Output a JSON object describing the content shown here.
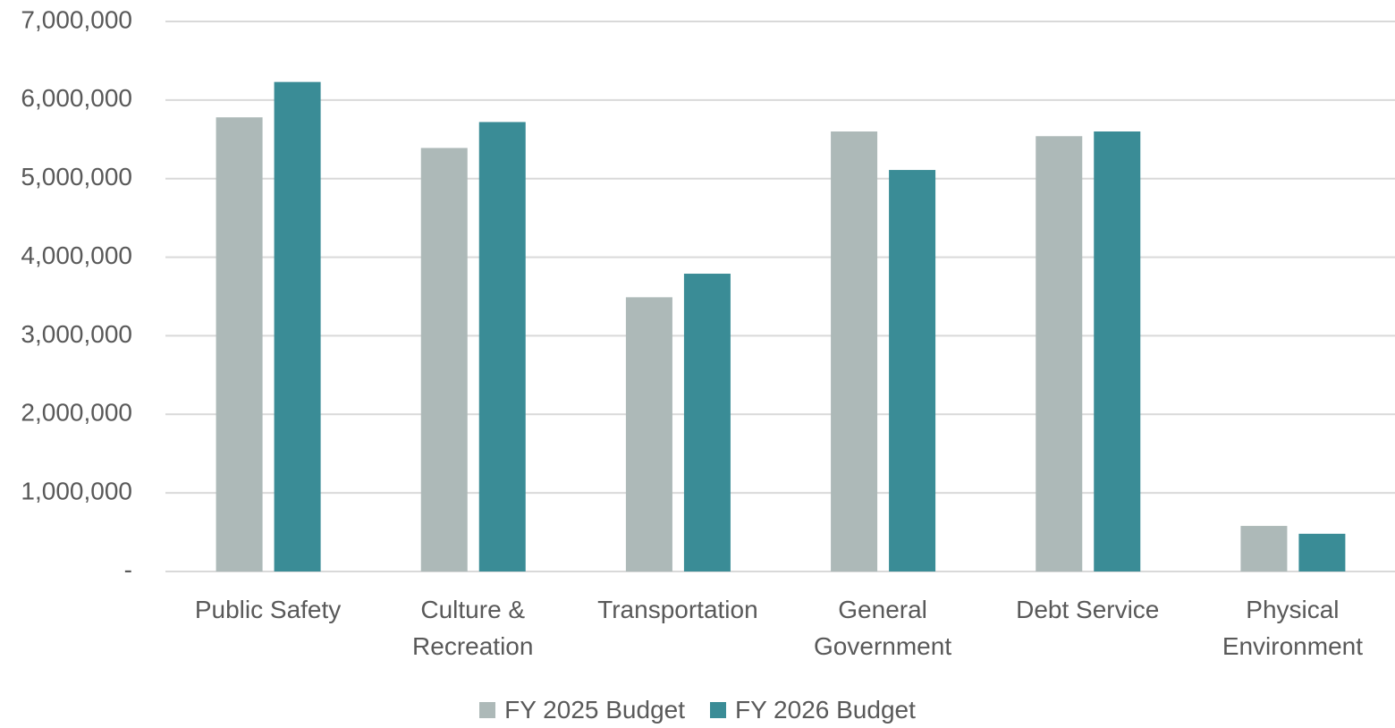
{
  "chart_data": {
    "type": "bar",
    "categories": [
      "Public Safety",
      "Culture & Recreation",
      "Transportation",
      "General Government",
      "Debt Service",
      "Physical Environment"
    ],
    "series": [
      {
        "name": "FY 2025 Budget",
        "color": "#adb9b8",
        "values": [
          5780000,
          5390000,
          3490000,
          5600000,
          5540000,
          580000
        ]
      },
      {
        "name": "FY 2026 Budget",
        "color": "#3a8c96",
        "values": [
          6230000,
          5720000,
          3790000,
          5110000,
          5600000,
          480000
        ]
      }
    ],
    "ylim": [
      0,
      7000000
    ],
    "yticks": [
      {
        "value": 0,
        "label": "-"
      },
      {
        "value": 1000000,
        "label": "1,000,000"
      },
      {
        "value": 2000000,
        "label": "2,000,000"
      },
      {
        "value": 3000000,
        "label": "3,000,000"
      },
      {
        "value": 4000000,
        "label": "4,000,000"
      },
      {
        "value": 5000000,
        "label": "5,000,000"
      },
      {
        "value": 6000000,
        "label": "6,000,000"
      },
      {
        "value": 7000000,
        "label": "7,000,000"
      }
    ],
    "grid": true,
    "legend": "bottom"
  }
}
